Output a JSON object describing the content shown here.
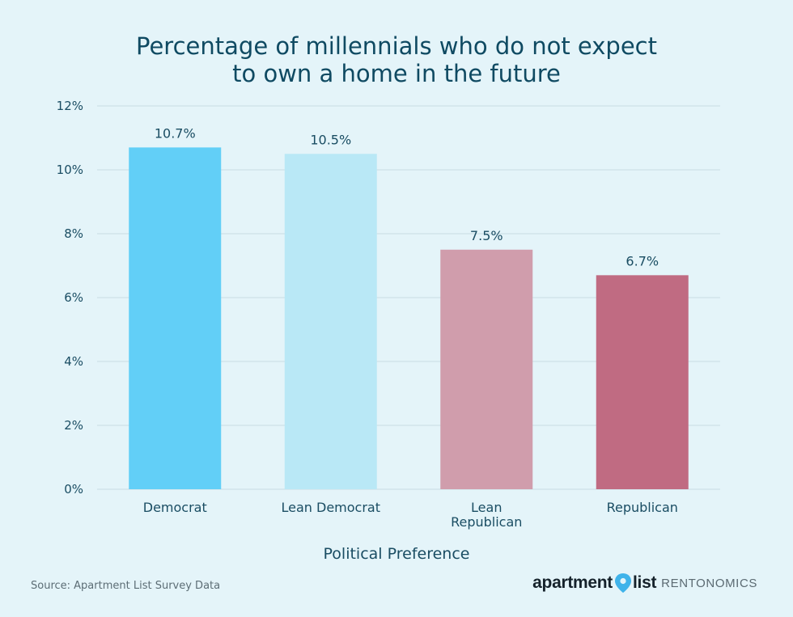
{
  "chart_data": {
    "type": "bar",
    "title_lines": [
      "Percentage of millennials who do not expect",
      "to own a home in the future"
    ],
    "xlabel": "Political Preference",
    "ylabel": "",
    "categories": [
      {
        "lines": [
          "Democrat"
        ]
      },
      {
        "lines": [
          "Lean Democrat"
        ]
      },
      {
        "lines": [
          "Lean",
          "Republican"
        ]
      },
      {
        "lines": [
          "Republican"
        ]
      }
    ],
    "values": [
      10.7,
      10.5,
      7.5,
      6.7
    ],
    "value_labels": [
      "10.7%",
      "10.5%",
      "7.5%",
      "6.7%"
    ],
    "bar_colors": [
      "#62cff7",
      "#b9e8f6",
      "#d09dac",
      "#c06b82"
    ],
    "ylim": [
      0,
      12
    ],
    "yticks": [
      0,
      2,
      4,
      6,
      8,
      10,
      12
    ],
    "ytick_labels": [
      "0%",
      "2%",
      "4%",
      "6%",
      "8%",
      "10%",
      "12%"
    ],
    "grid": true,
    "legend": "none",
    "source": "Source: Apartment List Survey Data"
  },
  "logo": {
    "brand_left": "apartment",
    "brand_right": "list",
    "sub": "RENTONOMICS",
    "pin_icon": "map-pin-icon",
    "pin_color": "#3fb3ea"
  },
  "colors": {
    "background": "#e4f4f9",
    "grid": "#c9dde4",
    "text": "#1a4d63"
  }
}
